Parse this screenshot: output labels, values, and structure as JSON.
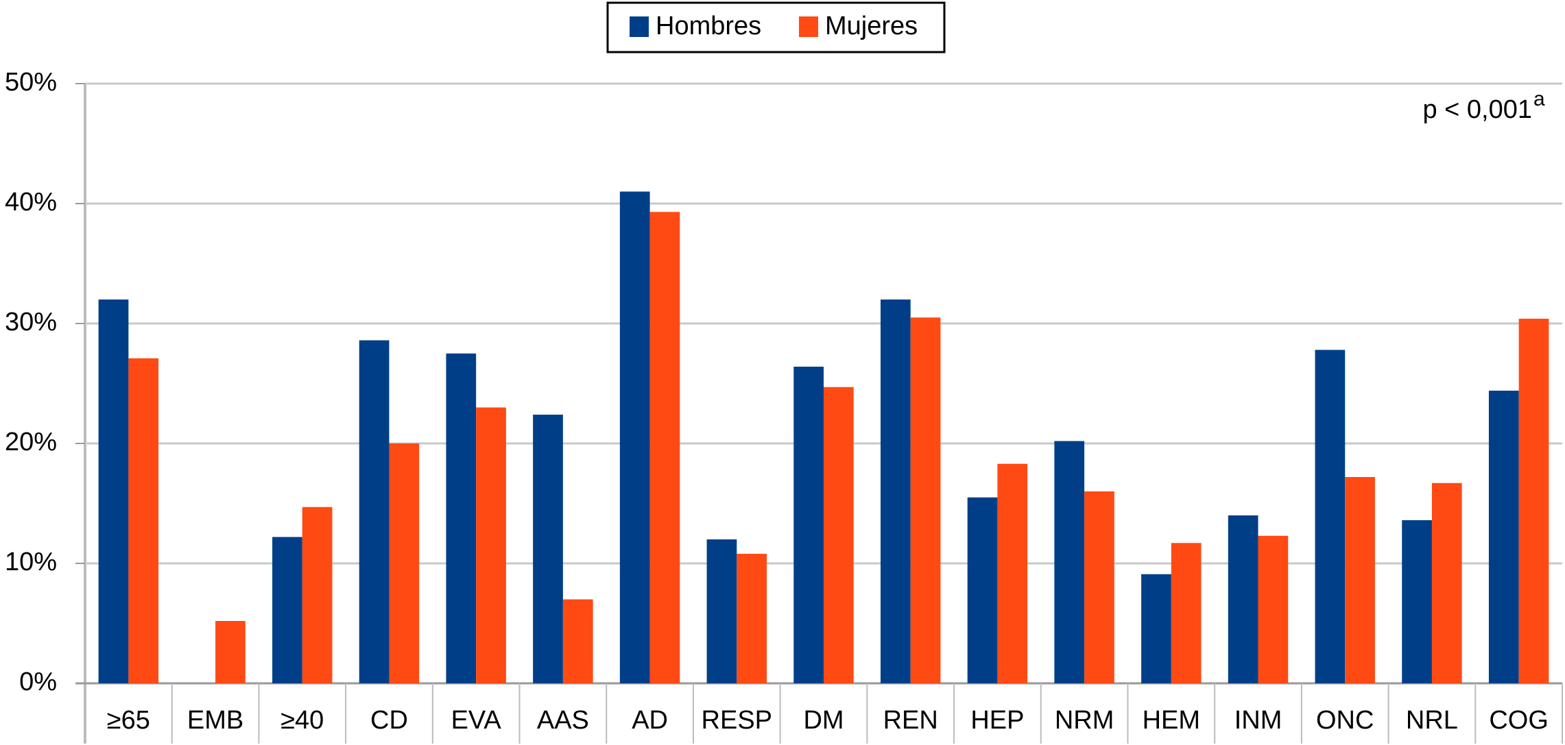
{
  "chart_data": {
    "type": "bar",
    "annotation": "p < 0,001",
    "annotation_superscript": "a",
    "categories": [
      "≥65",
      "EMB",
      "≥40",
      "CD",
      "EVA",
      "AAS",
      "AD",
      "RESP",
      "DM",
      "REN",
      "HEP",
      "NRM",
      "HEM",
      "INM",
      "ONC",
      "NRL",
      "COG"
    ],
    "series": [
      {
        "name": "Hombres",
        "color": "#003f87",
        "values": [
          32,
          0,
          12.2,
          28.6,
          27.5,
          22.4,
          41,
          12,
          26.4,
          32,
          15.5,
          20.2,
          9.1,
          14,
          27.8,
          13.6,
          24.4
        ]
      },
      {
        "name": "Mujeres",
        "color": "#ff4a14",
        "values": [
          27.1,
          5.2,
          14.7,
          20,
          23,
          7,
          39.3,
          10.8,
          24.7,
          30.5,
          18.3,
          16,
          11.7,
          12.3,
          17.2,
          16.7,
          30.4
        ]
      }
    ],
    "ylim": [
      0,
      50
    ],
    "yticks": [
      {
        "value": 0,
        "label": "0%"
      },
      {
        "value": 10,
        "label": "10%"
      },
      {
        "value": 20,
        "label": "20%"
      },
      {
        "value": 30,
        "label": "30%"
      },
      {
        "value": 40,
        "label": "40%"
      },
      {
        "value": 50,
        "label": "50%"
      }
    ],
    "grid": true,
    "legend": "top"
  }
}
